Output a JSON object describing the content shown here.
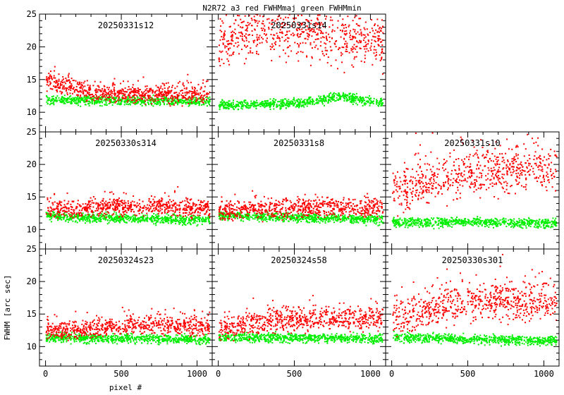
{
  "chart_data": {
    "type": "scatter",
    "title": "N2R72 a3 red FWHMmaj green FWHMmin",
    "xlabel": "pixel #",
    "ylabel": "FWHM [arc sec]",
    "xlim": [
      -40,
      1100
    ],
    "ylim": [
      7,
      25
    ],
    "x_ticks": [
      0,
      500,
      1000
    ],
    "y_ticks": [
      10,
      15,
      20,
      25
    ],
    "series_colors": {
      "FWHMmaj": "#ff0000",
      "FWHMmin": "#00ee00"
    },
    "legend": [
      {
        "name": "FWHMmaj",
        "color": "red"
      },
      {
        "name": "FWHMmin",
        "color": "green"
      }
    ],
    "panels": [
      {
        "label": "20250331s12",
        "maj_x": [
          0,
          100,
          200,
          300,
          400,
          500,
          600,
          700,
          800,
          900,
          1000,
          1080
        ],
        "maj_y": [
          15.0,
          14.2,
          13.5,
          13.1,
          13.0,
          12.9,
          12.9,
          12.8,
          12.8,
          12.8,
          12.9,
          13.0
        ],
        "maj_spread": 1.0,
        "min_x": [
          0,
          540,
          1080
        ],
        "min_y": [
          12.0,
          11.9,
          11.8
        ],
        "min_spread": 0.5
      },
      {
        "label": "20250331s14",
        "maj_x": [
          0,
          100,
          300,
          600,
          900,
          1080
        ],
        "maj_y": [
          20.5,
          21.5,
          22.5,
          22.0,
          21.0,
          20.5
        ],
        "maj_spread": 3.0,
        "min_x": [
          0,
          540,
          800,
          1080
        ],
        "min_y": [
          11.2,
          11.5,
          12.5,
          11.5
        ],
        "min_spread": 0.5
      },
      {
        "label": "20250330s314",
        "maj_x": [
          0,
          200,
          400,
          600,
          800,
          1080
        ],
        "maj_y": [
          13.0,
          13.2,
          13.5,
          13.6,
          13.5,
          13.2
        ],
        "maj_spread": 1.0,
        "min_x": [
          0,
          540,
          1080
        ],
        "min_y": [
          12.2,
          11.8,
          11.5
        ],
        "min_spread": 0.5
      },
      {
        "label": "20250331s8",
        "maj_x": [
          0,
          200,
          400,
          600,
          800,
          1080
        ],
        "maj_y": [
          12.8,
          13.0,
          13.2,
          13.3,
          13.3,
          13.2
        ],
        "maj_spread": 1.0,
        "min_x": [
          0,
          540,
          1080
        ],
        "min_y": [
          12.3,
          11.9,
          11.6
        ],
        "min_spread": 0.5
      },
      {
        "label": "20250331s10",
        "maj_x": [
          0,
          100,
          300,
          500,
          700,
          900,
          1080
        ],
        "maj_y": [
          16.0,
          16.5,
          17.5,
          18.5,
          19.0,
          19.5,
          19.5
        ],
        "maj_spread": 2.5,
        "min_x": [
          0,
          540,
          1080
        ],
        "min_y": [
          11.2,
          11.2,
          11.0
        ],
        "min_spread": 0.5
      },
      {
        "label": "20250324s23",
        "maj_x": [
          0,
          200,
          400,
          600,
          800,
          1080
        ],
        "maj_y": [
          12.5,
          12.6,
          13.0,
          13.3,
          13.3,
          13.2
        ],
        "maj_spread": 1.0,
        "min_x": [
          0,
          540,
          1080
        ],
        "min_y": [
          11.5,
          11.3,
          11.2
        ],
        "min_spread": 0.5
      },
      {
        "label": "20250324s58",
        "maj_x": [
          0,
          200,
          400,
          600,
          800,
          1080
        ],
        "maj_y": [
          12.8,
          13.5,
          14.0,
          14.2,
          14.3,
          14.3
        ],
        "maj_spread": 1.3,
        "min_x": [
          0,
          540,
          1080
        ],
        "min_y": [
          11.5,
          11.4,
          11.3
        ],
        "min_spread": 0.5
      },
      {
        "label": "20250330s301",
        "maj_x": [
          0,
          200,
          400,
          600,
          800,
          1080
        ],
        "maj_y": [
          14.5,
          15.5,
          16.5,
          17.0,
          17.0,
          16.8
        ],
        "maj_spread": 2.2,
        "min_x": [
          0,
          540,
          1080
        ],
        "min_y": [
          11.5,
          11.2,
          11.0
        ],
        "min_spread": 0.5
      }
    ]
  }
}
